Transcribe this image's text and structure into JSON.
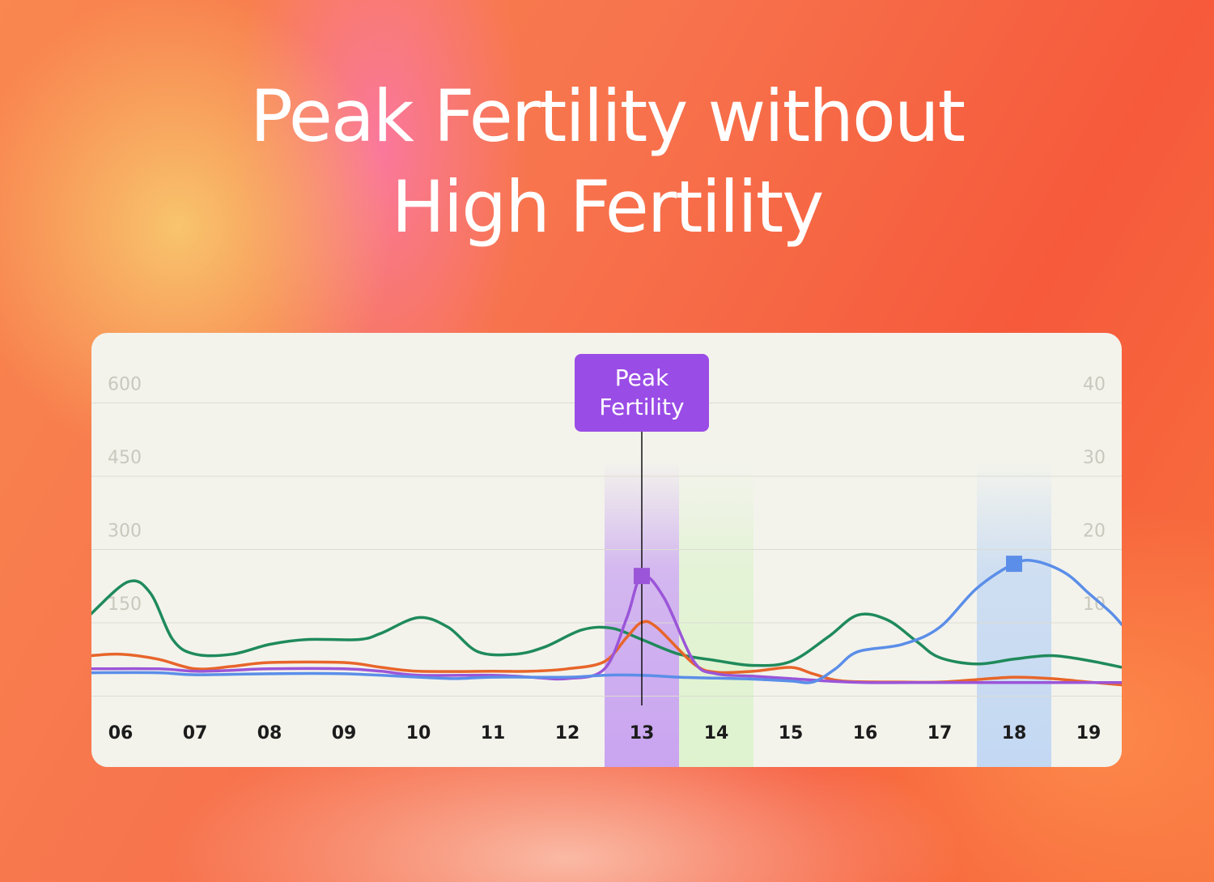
{
  "title_line1": "Peak Fertility without",
  "title_line2": "High Fertility",
  "chart_data": {
    "type": "line",
    "categories": [
      "06",
      "07",
      "08",
      "09",
      "10",
      "11",
      "12",
      "13",
      "14",
      "15",
      "16",
      "17",
      "18",
      "19"
    ],
    "y_left_ticks": [
      "600",
      "450",
      "300",
      "150"
    ],
    "y_right_ticks": [
      "40",
      "30",
      "20",
      "10"
    ],
    "ylim_left": [
      0,
      600
    ],
    "ylim_right": [
      0,
      40
    ],
    "grid": true,
    "highlights": [
      {
        "category": "13",
        "color": "#c9a4f0"
      },
      {
        "category": "14",
        "color": "#dff3cf"
      },
      {
        "category": "18",
        "color": "#c3d8f3"
      }
    ],
    "annotation": {
      "label_line1": "Peak",
      "label_line2": "Fertility",
      "category": "13",
      "color": "#9a4ce6"
    },
    "x_start": 5.6,
    "x_end": 19.45,
    "series": [
      {
        "color": "#1f8a5b",
        "points": [
          [
            5.6,
            167
          ],
          [
            6.1,
            233
          ],
          [
            6.4,
            210
          ],
          [
            6.7,
            115
          ],
          [
            7.0,
            85
          ],
          [
            7.5,
            85
          ],
          [
            8.0,
            105
          ],
          [
            8.5,
            115
          ],
          [
            9.2,
            115
          ],
          [
            9.5,
            128
          ],
          [
            10.0,
            160
          ],
          [
            10.4,
            140
          ],
          [
            10.8,
            90
          ],
          [
            11.3,
            85
          ],
          [
            11.7,
            100
          ],
          [
            12.2,
            135
          ],
          [
            12.6,
            138
          ],
          [
            13.0,
            115
          ],
          [
            13.5,
            85
          ],
          [
            14.0,
            72
          ],
          [
            14.5,
            62
          ],
          [
            15.0,
            70
          ],
          [
            15.5,
            120
          ],
          [
            15.9,
            165
          ],
          [
            16.3,
            155
          ],
          [
            16.7,
            110
          ],
          [
            17.0,
            78
          ],
          [
            17.5,
            65
          ],
          [
            18.0,
            75
          ],
          [
            18.5,
            82
          ],
          [
            19.0,
            72
          ],
          [
            19.45,
            58
          ]
        ]
      },
      {
        "color": "#e8652a",
        "points": [
          [
            5.6,
            82
          ],
          [
            6.0,
            85
          ],
          [
            6.5,
            75
          ],
          [
            7.0,
            55
          ],
          [
            7.5,
            60
          ],
          [
            8.0,
            68
          ],
          [
            9.0,
            68
          ],
          [
            9.5,
            58
          ],
          [
            10.0,
            50
          ],
          [
            11.0,
            50
          ],
          [
            11.5,
            50
          ],
          [
            12.0,
            55
          ],
          [
            12.5,
            70
          ],
          [
            12.8,
            120
          ],
          [
            13.0,
            150
          ],
          [
            13.2,
            140
          ],
          [
            13.7,
            65
          ],
          [
            14.0,
            48
          ],
          [
            14.5,
            50
          ],
          [
            15.0,
            58
          ],
          [
            15.3,
            45
          ],
          [
            15.7,
            30
          ],
          [
            16.5,
            28
          ],
          [
            17.0,
            28
          ],
          [
            17.5,
            33
          ],
          [
            18.0,
            38
          ],
          [
            18.5,
            35
          ],
          [
            19.0,
            28
          ],
          [
            19.45,
            22
          ]
        ]
      },
      {
        "color": "#9b55d8",
        "points": [
          [
            5.6,
            55
          ],
          [
            6.5,
            55
          ],
          [
            7.0,
            50
          ],
          [
            7.5,
            52
          ],
          [
            8.0,
            55
          ],
          [
            9.0,
            55
          ],
          [
            9.5,
            50
          ],
          [
            10.0,
            42
          ],
          [
            11.0,
            42
          ],
          [
            11.5,
            38
          ],
          [
            12.0,
            35
          ],
          [
            12.5,
            55
          ],
          [
            12.8,
            160
          ],
          [
            13.0,
            245
          ],
          [
            13.3,
            200
          ],
          [
            13.7,
            70
          ],
          [
            14.0,
            45
          ],
          [
            14.5,
            40
          ],
          [
            15.0,
            35
          ],
          [
            15.5,
            30
          ],
          [
            16.0,
            27
          ],
          [
            17.0,
            27
          ],
          [
            18.0,
            27
          ],
          [
            18.5,
            27
          ],
          [
            19.0,
            27
          ],
          [
            19.45,
            27
          ]
        ]
      },
      {
        "color": "#5b8ee8",
        "points": [
          [
            5.6,
            47
          ],
          [
            6.5,
            47
          ],
          [
            7.0,
            43
          ],
          [
            8.0,
            45
          ],
          [
            9.0,
            45
          ],
          [
            10.0,
            38
          ],
          [
            10.5,
            35
          ],
          [
            11.0,
            38
          ],
          [
            12.0,
            38
          ],
          [
            12.5,
            42
          ],
          [
            13.0,
            42
          ],
          [
            13.5,
            38
          ],
          [
            14.0,
            36
          ],
          [
            14.5,
            34
          ],
          [
            15.0,
            30
          ],
          [
            15.3,
            28
          ],
          [
            15.6,
            55
          ],
          [
            15.9,
            90
          ],
          [
            16.5,
            105
          ],
          [
            17.0,
            140
          ],
          [
            17.5,
            220
          ],
          [
            18.0,
            270
          ],
          [
            18.3,
            275
          ],
          [
            18.7,
            250
          ],
          [
            19.0,
            210
          ],
          [
            19.3,
            170
          ],
          [
            19.45,
            145
          ]
        ]
      }
    ],
    "markers": [
      {
        "x": 13.0,
        "y": 245,
        "color": "#9b55d8"
      },
      {
        "x": 18.0,
        "y": 270,
        "color": "#5b8ee8"
      }
    ]
  }
}
